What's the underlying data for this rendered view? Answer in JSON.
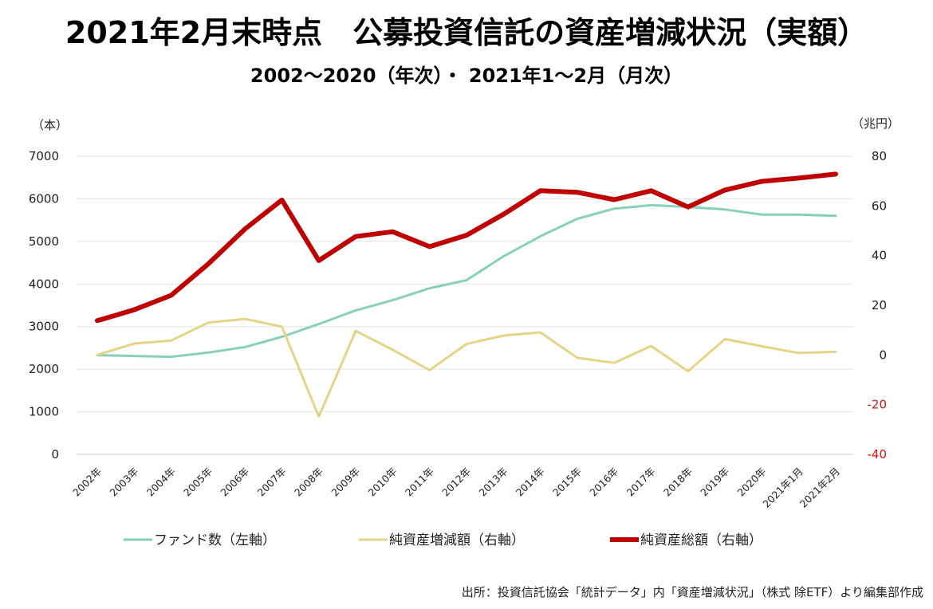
{
  "chart_data": {
    "type": "line",
    "title": "2021年2月末時点　公募投資信託の資産増減状況（実額）",
    "subtitle": "2002〜2020（年次）・ 2021年1〜2月（月次）",
    "y_left_unit": "（本）",
    "y_right_unit": "（兆円）",
    "ylim_left": [
      0,
      7000
    ],
    "ylim_right": [
      -40,
      80
    ],
    "y_left_ticks": [
      0,
      1000,
      2000,
      3000,
      4000,
      5000,
      6000,
      7000
    ],
    "y_right_ticks": [
      -40,
      -20,
      0,
      20,
      40,
      60,
      80
    ],
    "grid": true,
    "legend_position": "bottom",
    "categories": [
      "2002年",
      "2003年",
      "2004年",
      "2005年",
      "2006年",
      "2007年",
      "2008年",
      "2009年",
      "2010年",
      "2011年",
      "2012年",
      "2013年",
      "2014年",
      "2015年",
      "2016年",
      "2017年",
      "2018年",
      "2019年",
      "2020年",
      "2021年1月",
      "2021年2月"
    ],
    "series": [
      {
        "name": "ファンド数（左軸）",
        "axis": "left",
        "color": "#88d0bb",
        "values": [
          2330,
          2310,
          2290,
          2390,
          2520,
          2760,
          3060,
          3380,
          3620,
          3900,
          4090,
          4650,
          5120,
          5530,
          5770,
          5850,
          5810,
          5750,
          5630,
          5630,
          5600
        ]
      },
      {
        "name": "純資産増減額（右軸）",
        "axis": "right",
        "color": "#e6d486",
        "values": [
          0.0,
          4.6,
          5.8,
          13.0,
          14.5,
          11.4,
          -24.8,
          9.7,
          2.1,
          -6.1,
          4.4,
          7.8,
          9.1,
          -1.1,
          -3.2,
          3.6,
          -6.5,
          6.4,
          3.5,
          0.8,
          1.3
        ]
      },
      {
        "name": "純資産総額（右軸）",
        "axis": "right",
        "color": "#c00000",
        "values": [
          13.8,
          18.2,
          24.0,
          36.6,
          50.7,
          62.4,
          38.0,
          47.7,
          49.6,
          43.6,
          48.2,
          56.6,
          66.1,
          65.5,
          62.5,
          66.1,
          59.6,
          66.4,
          69.9,
          71.2,
          72.8
        ]
      }
    ]
  },
  "source_note": "出所：投資信託協会「統計データ」内「資産増減状況」（株式 除ETF）より編集部作成"
}
